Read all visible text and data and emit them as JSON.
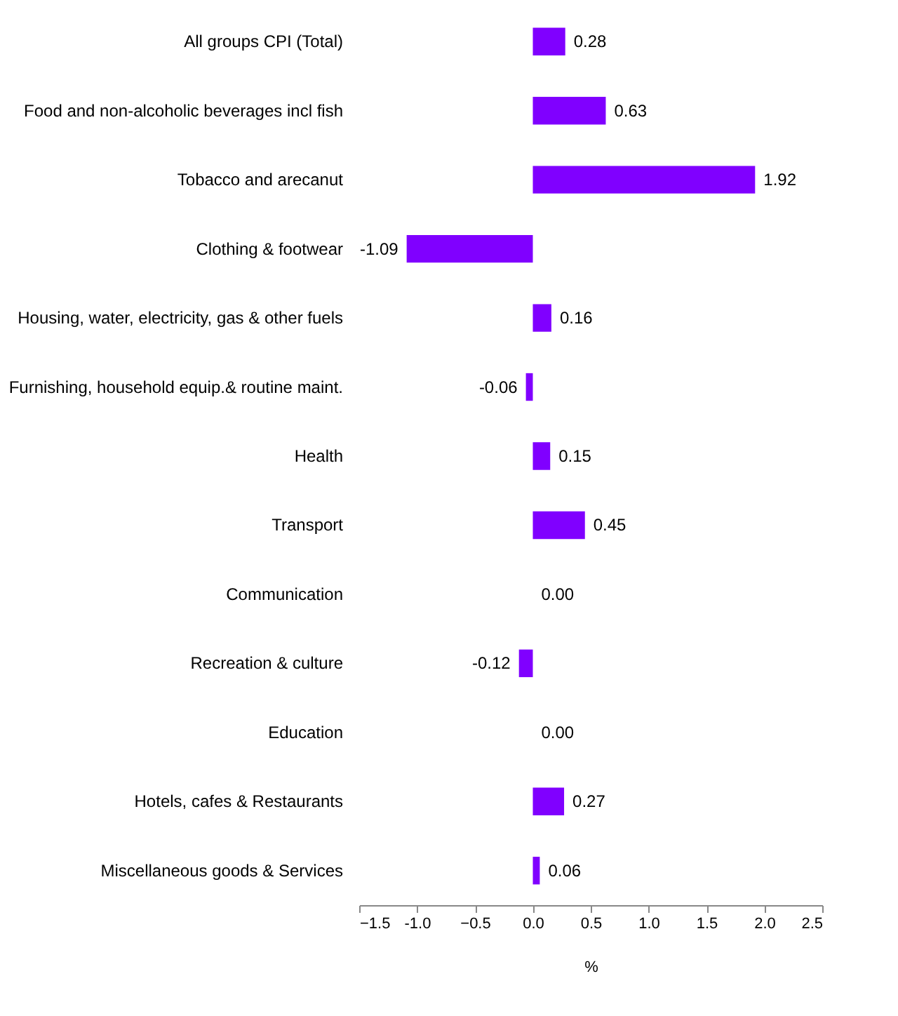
{
  "chart_data": {
    "type": "bar",
    "orientation": "horizontal",
    "xlabel": "%",
    "categories": [
      "All groups CPI (Total)",
      "Food and non-alcoholic beverages incl fish",
      "Tobacco and arecanut",
      "Clothing & footwear",
      "Housing, water, electricity, gas & other fuels",
      "Furnishing, household equip.& routine maint.",
      "Health",
      "Transport",
      "Communication",
      "Recreation & culture",
      "Education",
      "Hotels, cafes & Restaurants",
      "Miscellaneous goods & Services"
    ],
    "values": [
      0.28,
      0.63,
      1.92,
      -1.09,
      0.16,
      -0.06,
      0.15,
      0.45,
      0.0,
      -0.12,
      0.0,
      0.27,
      0.06
    ],
    "value_labels": [
      "0.28",
      "0.63",
      "1.92",
      "-1.09",
      "0.16",
      "-0.06",
      "0.15",
      "0.45",
      "0.00",
      "-0.12",
      "0.00",
      "0.27",
      "0.06"
    ],
    "color": "#8000ff",
    "xlim": [
      -1.5,
      2.5
    ],
    "xticks": [
      -1.5,
      {
        "value": -1.0,
        "label": "-1.0"
      },
      -0.5,
      {
        "value": 0.0,
        "label": "0.0"
      },
      0.5,
      {
        "value": 1.0,
        "label": "1.0"
      },
      1.5,
      {
        "value": 2.0,
        "label": "2.0"
      },
      2.5
    ],
    "grid": false
  }
}
